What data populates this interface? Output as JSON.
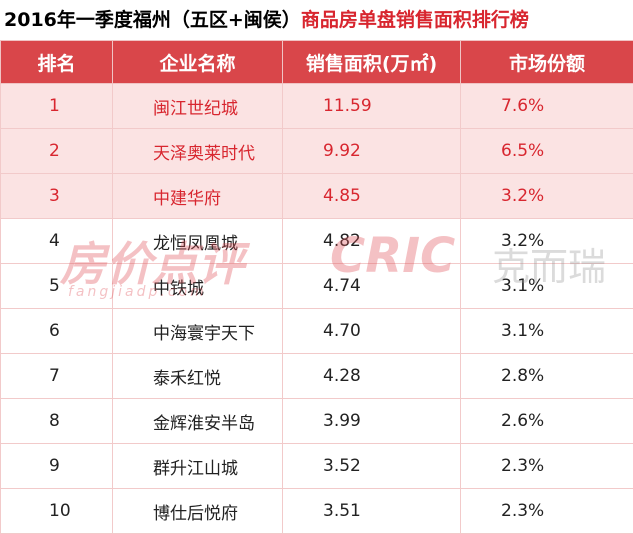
{
  "header": {
    "title_black": "2016年一季度福州（五区+闽侯）",
    "title_red": "商品房单盘销售面积排行榜"
  },
  "table": {
    "columns": [
      "排名",
      "企业名称",
      "销售面积(万㎡)",
      "市场份额"
    ],
    "highlight_rows": 3,
    "rows": [
      [
        "1",
        "闽江世纪城",
        "11.59",
        "7.6%"
      ],
      [
        "2",
        "天泽奥莱时代",
        "9.92",
        "6.5%"
      ],
      [
        "3",
        "中建华府",
        "4.85",
        "3.2%"
      ],
      [
        "4",
        "龙恒凤凰城",
        "4.82",
        "3.2%"
      ],
      [
        "5",
        "中铁城",
        "4.74",
        "3.1%"
      ],
      [
        "6",
        "中海寰宇天下",
        "4.70",
        "3.1%"
      ],
      [
        "7",
        "泰禾红悦",
        "4.28",
        "2.8%"
      ],
      [
        "8",
        "金辉淮安半岛",
        "3.99",
        "2.6%"
      ],
      [
        "9",
        "群升江山城",
        "3.52",
        "2.3%"
      ],
      [
        "10",
        "博仕后悦府",
        "3.51",
        "2.3%"
      ]
    ]
  },
  "watermark": {
    "left": "房价点评",
    "left_url": "fangjiadp.com",
    "right_logo": "CRIC",
    "right_text": "克而瑞"
  }
}
